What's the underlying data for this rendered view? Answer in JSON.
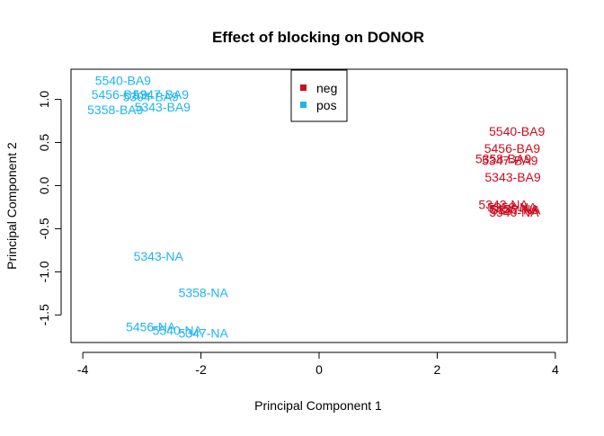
{
  "chart_data": {
    "type": "scatter",
    "title": "Effect of blocking on DONOR",
    "xlabel": "Principal Component 1",
    "ylabel": "Principal Component 2",
    "xlim": [
      -4.2,
      4.2
    ],
    "ylim": [
      -1.82,
      1.35
    ],
    "x_ticks": [
      -4,
      -2,
      0,
      2,
      4
    ],
    "x_tick_labels": [
      "-4",
      "-2",
      "0",
      "2",
      "4"
    ],
    "y_ticks": [
      -1.5,
      -1.0,
      -0.5,
      0.0,
      0.5,
      1.0
    ],
    "y_tick_labels": [
      "-1.5",
      "-1.0",
      "-0.5",
      "0.0",
      "0.5",
      "1.0"
    ],
    "grid": false,
    "legend_position": "top-center",
    "point_style": "text-labels",
    "series": [
      {
        "name": "neg",
        "color": "#cd0a1e",
        "points": [
          {
            "label": "5540-BA9",
            "x": 3.35,
            "y": 0.63
          },
          {
            "label": "5456-BA9",
            "x": 3.27,
            "y": 0.43
          },
          {
            "label": "5358-BA9",
            "x": 3.12,
            "y": 0.31
          },
          {
            "label": "5347-BA9",
            "x": 3.23,
            "y": 0.29
          },
          {
            "label": "5343-BA9",
            "x": 3.28,
            "y": 0.1
          },
          {
            "label": "5343-NA",
            "x": 3.12,
            "y": -0.22
          },
          {
            "label": "5358-NA",
            "x": 3.27,
            "y": -0.25
          },
          {
            "label": "5456-NA",
            "x": 3.3,
            "y": -0.27
          },
          {
            "label": "5347-NA",
            "x": 3.33,
            "y": -0.28
          },
          {
            "label": "5540-NA",
            "x": 3.3,
            "y": -0.31
          }
        ]
      },
      {
        "name": "pos",
        "color": "#1eb4f0",
        "points": [
          {
            "label": "5540-BA9",
            "x": -3.32,
            "y": 1.22
          },
          {
            "label": "5456-BA9",
            "x": -3.38,
            "y": 1.06
          },
          {
            "label": "5347-BA9",
            "x": -2.68,
            "y": 1.06
          },
          {
            "label": "5304-BA9",
            "x": -2.85,
            "y": 1.03
          },
          {
            "label": "5358-BA9",
            "x": -3.45,
            "y": 0.88
          },
          {
            "label": "5343-BA9",
            "x": -2.65,
            "y": 0.91
          },
          {
            "label": "5343-NA",
            "x": -2.72,
            "y": -0.82
          },
          {
            "label": "5358-NA",
            "x": -1.96,
            "y": -1.24
          },
          {
            "label": "5456-NA",
            "x": -2.85,
            "y": -1.64
          },
          {
            "label": "5540-NA",
            "x": -2.4,
            "y": -1.68
          },
          {
            "label": "5347-NA",
            "x": -1.96,
            "y": -1.71
          }
        ]
      }
    ],
    "legend": [
      {
        "name": "neg",
        "color": "#cd0a1e"
      },
      {
        "name": "pos",
        "color": "#1eb4f0"
      }
    ]
  }
}
